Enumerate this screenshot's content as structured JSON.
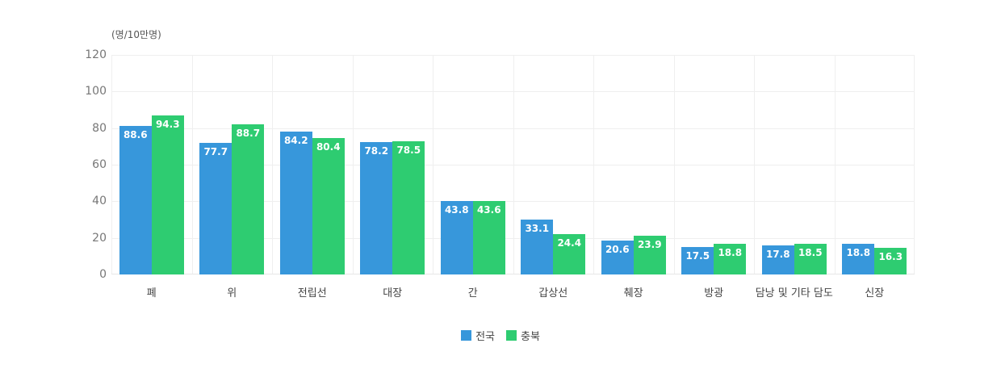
{
  "chart_data": {
    "type": "bar",
    "title": "",
    "unit_label": "(명/10만명)",
    "xlabel": "",
    "ylabel": "(명/10만명)",
    "ylim": [
      0,
      120
    ],
    "yticks": [
      "0",
      "20",
      "40",
      "60",
      "80",
      "100",
      "120"
    ],
    "grid": true,
    "legend_position": "bottom",
    "categories": [
      "폐",
      "위",
      "전립선",
      "대장",
      "간",
      "갑상선",
      "췌장",
      "방광",
      "담낭 및 기타 담도",
      "신장"
    ],
    "series": [
      {
        "name": "전국",
        "color": "#3797DB",
        "values": [
          88.6,
          77.7,
          84.2,
          78.2,
          43.8,
          33.1,
          20.6,
          17.5,
          17.8,
          18.8
        ],
        "labels": [
          "88.6",
          "77.7",
          "84.2",
          "78.2",
          "43.8",
          "33.1",
          "20.6",
          "17.5",
          "17.8",
          "18.8"
        ],
        "drawn_heights": [
          81.4,
          71.8,
          78.0,
          72.3,
          40.2,
          30.0,
          18.5,
          15.0,
          15.9,
          16.8
        ]
      },
      {
        "name": "충북",
        "color": "#2ECC71",
        "values": [
          94.3,
          88.7,
          80.4,
          78.5,
          43.6,
          24.4,
          23.9,
          18.8,
          18.5,
          16.3
        ],
        "labels": [
          "94.3",
          "88.7",
          "80.4",
          "78.5",
          "43.6",
          "24.4",
          "23.9",
          "18.8",
          "18.5",
          "16.3"
        ],
        "drawn_heights": [
          87.1,
          82.0,
          74.5,
          72.8,
          40.2,
          22.1,
          21.2,
          16.8,
          16.8,
          14.6
        ]
      }
    ]
  },
  "legend": [
    {
      "label": "전국",
      "color": "#3797DB"
    },
    {
      "label": "충북",
      "color": "#2ECC71"
    }
  ]
}
